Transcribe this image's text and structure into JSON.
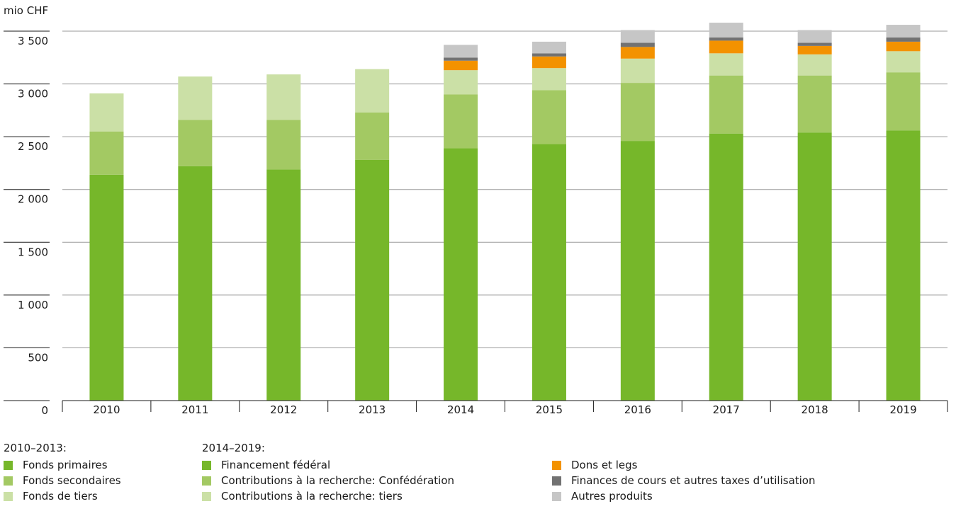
{
  "chart_data": {
    "type": "bar",
    "stacked": true,
    "unit_label": "mio CHF",
    "categories": [
      "2010",
      "2011",
      "2012",
      "2013",
      "2014",
      "2015",
      "2016",
      "2017",
      "2018",
      "2019"
    ],
    "ylim": [
      0,
      3500
    ],
    "yticks": [
      0,
      500,
      1000,
      1500,
      2000,
      2500,
      3000,
      3500
    ],
    "ytick_labels": [
      "0",
      "500",
      "1 000",
      "1 500",
      "2 000",
      "2 500",
      "3 000",
      "3 500"
    ],
    "grid": true,
    "series": [
      {
        "name": "Fonds primaires",
        "color": "#76b72a",
        "values": [
          2140,
          2220,
          2190,
          2280,
          0,
          0,
          0,
          0,
          0,
          0
        ]
      },
      {
        "name": "Fonds secondaires",
        "color": "#a3c963",
        "values": [
          410,
          440,
          470,
          450,
          0,
          0,
          0,
          0,
          0,
          0
        ]
      },
      {
        "name": "Fonds de tiers",
        "color": "#cbe0a6",
        "values": [
          360,
          410,
          430,
          410,
          0,
          0,
          0,
          0,
          0,
          0
        ]
      },
      {
        "name": "Financement fédéral",
        "color": "#76b72a",
        "values": [
          0,
          0,
          0,
          0,
          2390,
          2430,
          2460,
          2530,
          2540,
          2560
        ]
      },
      {
        "name": "Contributions à la recherche: Confédération",
        "color": "#a3c963",
        "values": [
          0,
          0,
          0,
          0,
          510,
          510,
          550,
          550,
          540,
          550
        ]
      },
      {
        "name": "Contributions à la recherche: tiers",
        "color": "#cbe0a6",
        "values": [
          0,
          0,
          0,
          0,
          230,
          210,
          230,
          210,
          200,
          200
        ]
      },
      {
        "name": "Dons et legs",
        "color": "#f39200",
        "values": [
          0,
          0,
          0,
          0,
          90,
          110,
          110,
          120,
          80,
          90
        ]
      },
      {
        "name": "Finances de cours et autres taxes d’utilisation",
        "color": "#727272",
        "values": [
          0,
          0,
          0,
          0,
          30,
          30,
          40,
          30,
          30,
          40
        ]
      },
      {
        "name": "Autres produits",
        "color": "#c6c6c6",
        "values": [
          0,
          0,
          0,
          0,
          120,
          110,
          120,
          140,
          120,
          120
        ]
      }
    ]
  },
  "legend": {
    "group_a_title": "2010–2013:",
    "group_b_title": "2014–2019:",
    "group_a": [
      "Fonds primaires",
      "Fonds secondaires",
      "Fonds de tiers"
    ],
    "group_b": [
      "Financement fédéral",
      "Contributions à la recherche: Confédération",
      "Contributions à la recherche: tiers"
    ],
    "group_c": [
      "Dons et legs",
      "Finances de cours et autres taxes d’utilisation",
      "Autres produits"
    ],
    "colors": {
      "primary": "#76b72a",
      "secondary": "#a3c963",
      "third": "#cbe0a6",
      "donations": "#f39200",
      "fees": "#727272",
      "other": "#c6c6c6"
    }
  }
}
